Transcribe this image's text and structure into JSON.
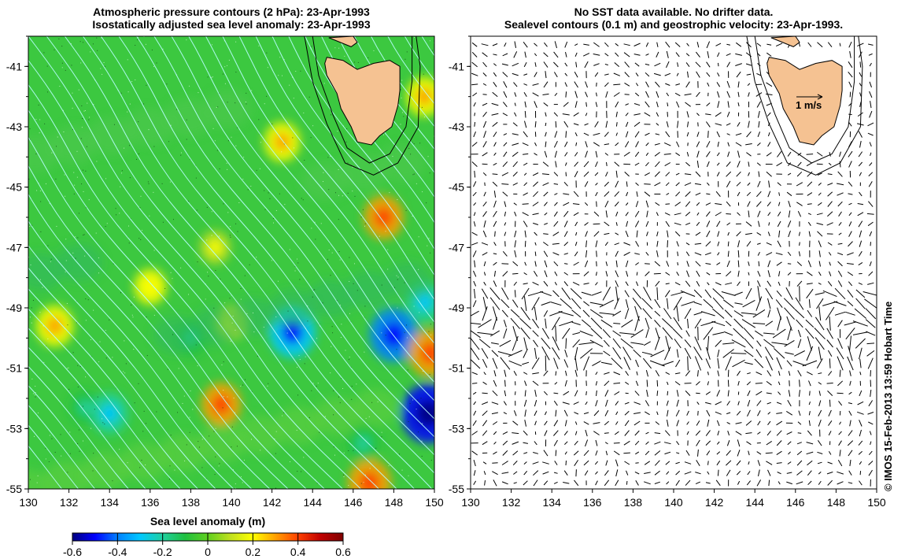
{
  "left_panel": {
    "title_line1": "Atmospheric pressure contours (2 hPa): 23-Apr-1993",
    "title_line2": "Isostatically adjusted sea level anomaly: 23-Apr-1993"
  },
  "right_panel": {
    "title_line1": "No SST data available.  No drifter data.",
    "title_line2": "Sealevel contours (0.1 m) and geostrophic velocity: 23-Apr-1993.",
    "scale_label": "1 m/s"
  },
  "axes": {
    "x_ticks": [
      "130",
      "132",
      "134",
      "136",
      "138",
      "140",
      "142",
      "144",
      "146",
      "148",
      "150"
    ],
    "y_ticks": [
      "-41",
      "-43",
      "-45",
      "-47",
      "-49",
      "-51",
      "-53",
      "-55"
    ],
    "lon_range": [
      130,
      150
    ],
    "lat_range": [
      -55,
      -40
    ]
  },
  "colorbar": {
    "title": "Sea level anomaly (m)",
    "ticks": [
      "-0.6",
      "-0.4",
      "-0.2",
      "0",
      "0.2",
      "0.4",
      "0.6"
    ],
    "colors": [
      "#00007f",
      "#0000ff",
      "#0080ff",
      "#00c8ff",
      "#20d0a0",
      "#20c040",
      "#60d020",
      "#c0e020",
      "#ffff00",
      "#ffa000",
      "#ff4000",
      "#c00000",
      "#7f0000"
    ]
  },
  "credit": "© IMOS 15-Feb-2013 13:59 Hobart Time",
  "colors": {
    "ocean_base": "#3cc840",
    "land": "#f5c292",
    "pressure_contour": "#b8ffff"
  },
  "anomaly_spots": [
    {
      "lon": 131.3,
      "lat": -49.6,
      "value": 0.22
    },
    {
      "lon": 132.8,
      "lat": -52.3,
      "value": -0.12
    },
    {
      "lon": 134.0,
      "lat": -52.5,
      "value": -0.22
    },
    {
      "lon": 136.0,
      "lat": -48.3,
      "value": 0.15
    },
    {
      "lon": 139.5,
      "lat": -52.2,
      "value": 0.25
    },
    {
      "lon": 140.0,
      "lat": -49.5,
      "value": 0.12
    },
    {
      "lon": 139.2,
      "lat": -47.0,
      "value": 0.12
    },
    {
      "lon": 143.0,
      "lat": -49.8,
      "value": -0.35
    },
    {
      "lon": 142.5,
      "lat": -43.5,
      "value": 0.2
    },
    {
      "lon": 148.0,
      "lat": -49.9,
      "value": -0.38
    },
    {
      "lon": 149.7,
      "lat": -52.5,
      "value": -0.45
    },
    {
      "lon": 149.5,
      "lat": -48.8,
      "value": -0.2
    },
    {
      "lon": 149.8,
      "lat": -50.5,
      "value": 0.3
    },
    {
      "lon": 147.5,
      "lat": -46.0,
      "value": 0.25
    },
    {
      "lon": 149.5,
      "lat": -42.0,
      "value": 0.2
    },
    {
      "lon": 146.8,
      "lat": -54.8,
      "value": 0.3
    },
    {
      "lon": 138.0,
      "lat": -50.0,
      "value": -0.15
    },
    {
      "lon": 146.5,
      "lat": -53.5,
      "value": -0.15
    }
  ]
}
